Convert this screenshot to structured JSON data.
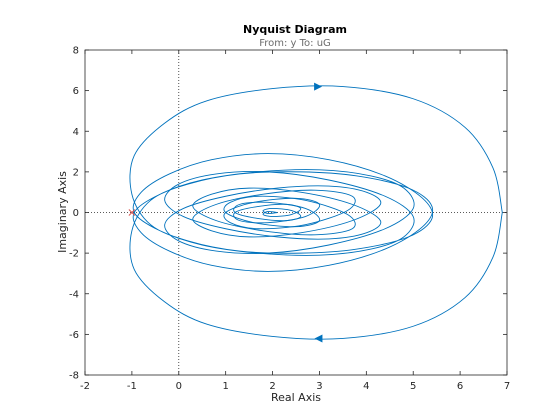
{
  "chart_data": {
    "type": "line",
    "title": "Nyquist Diagram",
    "subtitle": "From: y  To: uG",
    "xlabel": "Real Axis",
    "ylabel": "Imaginary Axis",
    "xlim": [
      -2,
      7
    ],
    "ylim": [
      -8,
      8
    ],
    "xticks": [
      "-2",
      "-1",
      "0",
      "1",
      "2",
      "3",
      "4",
      "5",
      "6",
      "7"
    ],
    "yticks": [
      "-8",
      "-6",
      "-4",
      "-2",
      "0",
      "2",
      "4",
      "6",
      "8"
    ],
    "grid": false,
    "critical_point": [
      -1,
      0
    ],
    "series": [
      {
        "color": "#0072BD",
        "x": [
          6.9,
          6.7,
          6.1,
          5.0,
          3.5,
          2.0,
          0.6,
          -0.3,
          -0.95,
          -1.0,
          -0.6,
          0.2,
          1.3,
          2.6,
          3.8,
          4.9,
          5.4,
          5.2,
          4.4,
          3.2,
          1.9,
          0.7,
          -0.2,
          -0.8,
          -0.95,
          -0.4,
          0.5,
          1.7,
          3.0,
          4.1,
          4.8,
          5.0,
          4.4,
          3.2,
          1.9,
          0.8,
          0.0,
          -0.3,
          0.1,
          1.0,
          2.1,
          3.2,
          4.0,
          4.3,
          3.7,
          2.6,
          1.5,
          0.7,
          0.3,
          0.8,
          1.8,
          2.9,
          3.7,
          3.6,
          2.7,
          1.7,
          1.1,
          1.0,
          1.6,
          2.5,
          3.0,
          2.7,
          1.9,
          1.3,
          1.2,
          1.7,
          2.3,
          2.6,
          2.4,
          2.0,
          1.8,
          1.9,
          2.1
        ],
        "y": [
          0.0,
          2.2,
          4.2,
          5.6,
          6.2,
          6.1,
          5.5,
          4.4,
          2.8,
          0.9,
          -0.6,
          -1.4,
          -1.9,
          -2.0,
          -1.8,
          -1.2,
          -0.3,
          0.7,
          1.8,
          2.6,
          2.9,
          2.6,
          1.9,
          1.0,
          0.0,
          -0.9,
          -1.6,
          -2.0,
          -2.1,
          -1.8,
          -1.2,
          -0.2,
          0.8,
          1.6,
          2.0,
          1.9,
          1.4,
          0.6,
          -0.2,
          -0.8,
          -1.2,
          -1.3,
          -1.0,
          -0.4,
          0.4,
          1.0,
          1.2,
          0.9,
          0.3,
          -0.4,
          -0.9,
          -1.1,
          -0.8,
          -0.1,
          0.6,
          0.8,
          0.5,
          0.0,
          -0.5,
          -0.7,
          -0.4,
          0.2,
          0.5,
          0.4,
          0.0,
          -0.3,
          -0.4,
          -0.2,
          0.1,
          0.2,
          0.1,
          -0.05,
          0.0
        ]
      }
    ],
    "mirror_about_real_axis": true
  }
}
